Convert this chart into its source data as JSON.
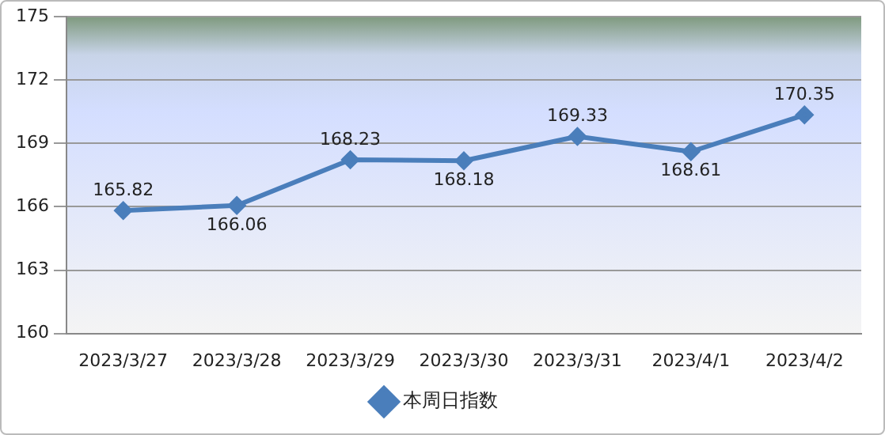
{
  "chart_data": {
    "type": "line",
    "categories": [
      "2023/3/27",
      "2023/3/28",
      "2023/3/29",
      "2023/3/30",
      "2023/3/31",
      "2023/4/1",
      "2023/4/2"
    ],
    "series": [
      {
        "name": "本周日指数",
        "color": "#4a7ebb",
        "values": [
          165.82,
          166.06,
          168.23,
          168.18,
          169.33,
          168.61,
          170.35
        ]
      }
    ],
    "ylim": [
      160,
      175
    ],
    "yticks": [
      160,
      163,
      166,
      169,
      172,
      175
    ],
    "grid": "y",
    "legend": "bottom",
    "marker": "diamond",
    "line_style": "solid",
    "data_labels": true
  }
}
